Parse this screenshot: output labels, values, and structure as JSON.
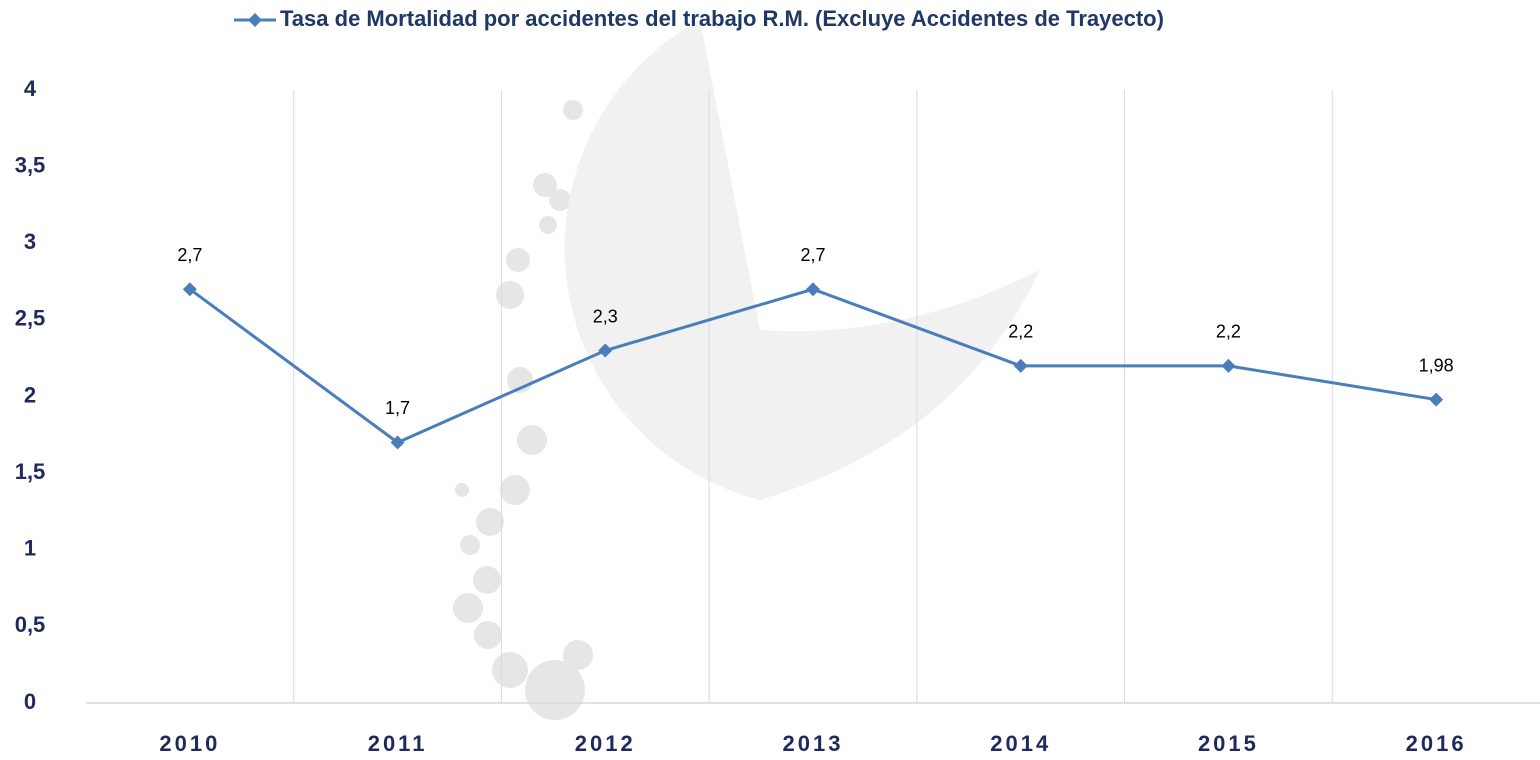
{
  "chart_data": {
    "type": "line",
    "categories": [
      "2010",
      "2011",
      "2012",
      "2013",
      "2014",
      "2015",
      "2016"
    ],
    "series": [
      {
        "name": "Tasa de Mortalidad por accidentes del trabajo R.M. (Excluye Accidentes de Trayecto)",
        "color": "#4a7ebb",
        "values": [
          2.7,
          1.7,
          2.3,
          2.7,
          2.2,
          2.2,
          1.98
        ],
        "value_labels": [
          "2,7",
          "1,7",
          "2,3",
          "2,7",
          "2,2",
          "2,2",
          "1,98"
        ]
      }
    ],
    "ylim": [
      0,
      4
    ],
    "yticks": [
      0,
      {
        "value": 0.5,
        "label": "0,5"
      },
      1,
      {
        "value": 1.5,
        "label": "1,5"
      },
      2,
      {
        "value": 2.5,
        "label": "2,5"
      },
      3,
      {
        "value": 3.5,
        "label": "3,5"
      },
      4
    ],
    "legend": "top"
  }
}
